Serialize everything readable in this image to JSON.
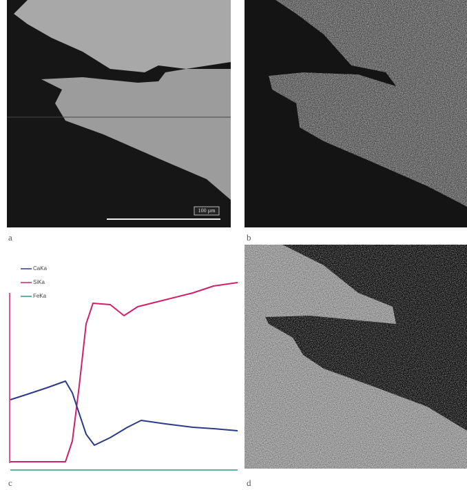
{
  "panels": {
    "a": {
      "label": "a",
      "scale_bar": "100 µm"
    },
    "b": {
      "label": "b"
    },
    "c": {
      "label": "c",
      "legend": [
        "CaKa",
        "SiKa",
        "FeKa"
      ]
    },
    "d": {
      "label": "d"
    }
  }
}
